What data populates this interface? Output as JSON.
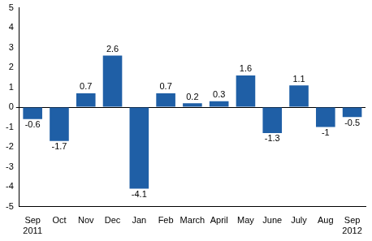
{
  "chart_data": {
    "type": "bar",
    "categories": [
      "Sep\n2011",
      "Oct",
      "Nov",
      "Dec",
      "Jan",
      "Feb",
      "March",
      "April",
      "May",
      "June",
      "July",
      "Aug",
      "Sep\n2012"
    ],
    "values": [
      -0.6,
      -1.7,
      0.7,
      2.6,
      -4.1,
      0.7,
      0.2,
      0.3,
      1.6,
      -1.3,
      1.1,
      -1,
      -0.5
    ],
    "color": "#1f5fa6",
    "ylim": [
      -5,
      5
    ],
    "yticks": [
      -5,
      -4,
      -3,
      -2,
      -1,
      0,
      1,
      2,
      3,
      4,
      5
    ],
    "grid": false,
    "data_labels": true
  }
}
